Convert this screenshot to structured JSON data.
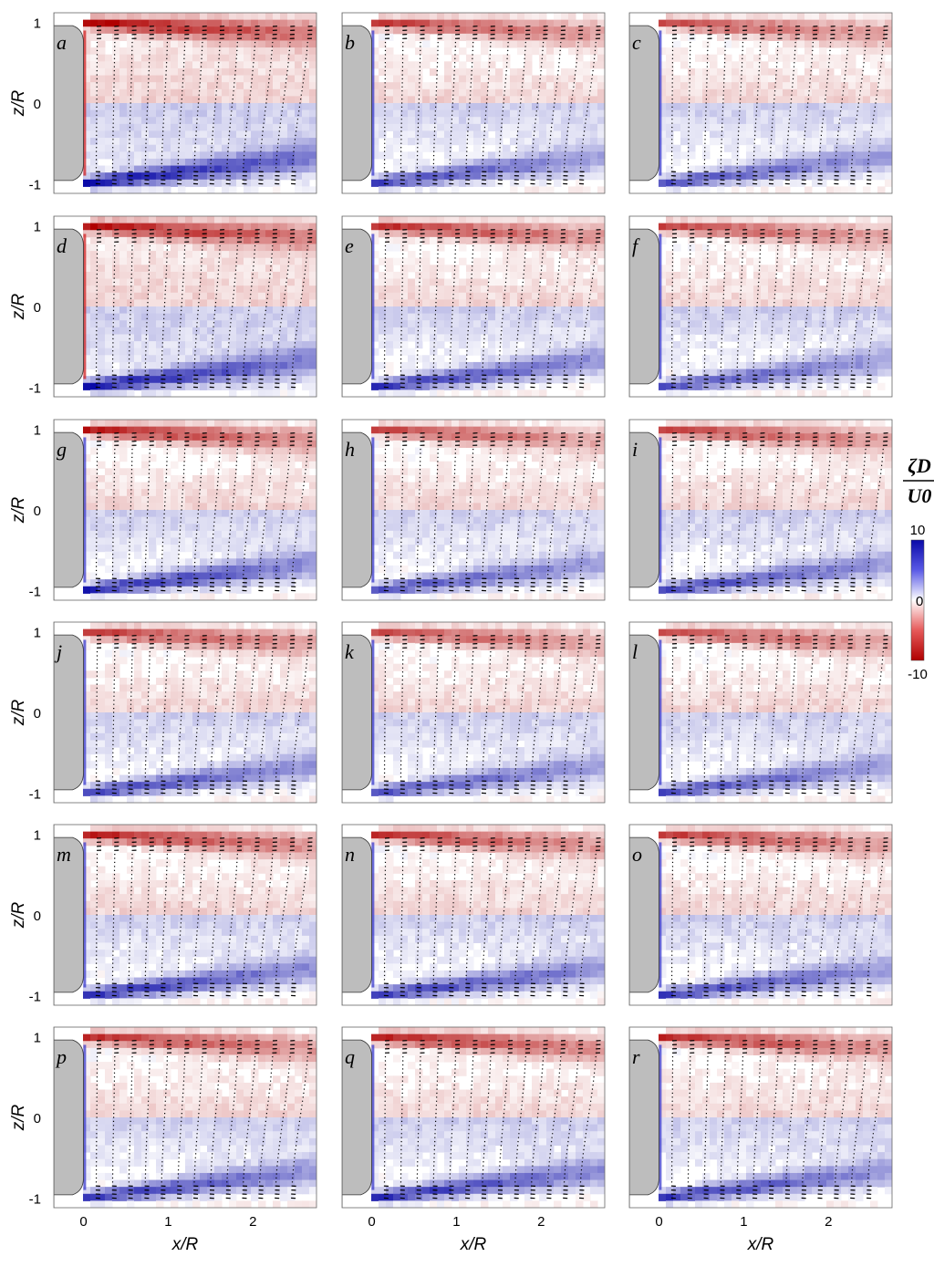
{
  "chart_data": {
    "type": "heatmap",
    "description_quantity": "normalized spanwise vorticity",
    "grid": {
      "rows": 6,
      "cols": 3
    },
    "panels": [
      "a",
      "b",
      "c",
      "d",
      "e",
      "f",
      "g",
      "h",
      "i",
      "j",
      "k",
      "l",
      "m",
      "n",
      "o",
      "p",
      "q",
      "r"
    ],
    "xlabel": "x/R",
    "ylabel": "z/R",
    "xticks": [
      0,
      1,
      2
    ],
    "xtick_labels": [
      "0",
      "1",
      "2"
    ],
    "yticks": [
      1,
      0,
      -1
    ],
    "ytick_labels": [
      "1",
      "0",
      "-1"
    ],
    "xlim": [
      -0.35,
      2.75
    ],
    "ylim": [
      -1.12,
      1.12
    ],
    "colorbar": {
      "label_num": "ζD",
      "label_den": "U0",
      "ticks": [
        10,
        0,
        -10
      ],
      "tick_labels": [
        "10",
        "0",
        "-10"
      ],
      "range": [
        -10,
        10
      ],
      "high_color": "#0a0aa8",
      "mid_color": "#ffffff",
      "low_color": "#b00000"
    },
    "body_color": "#bdbdbd"
  }
}
